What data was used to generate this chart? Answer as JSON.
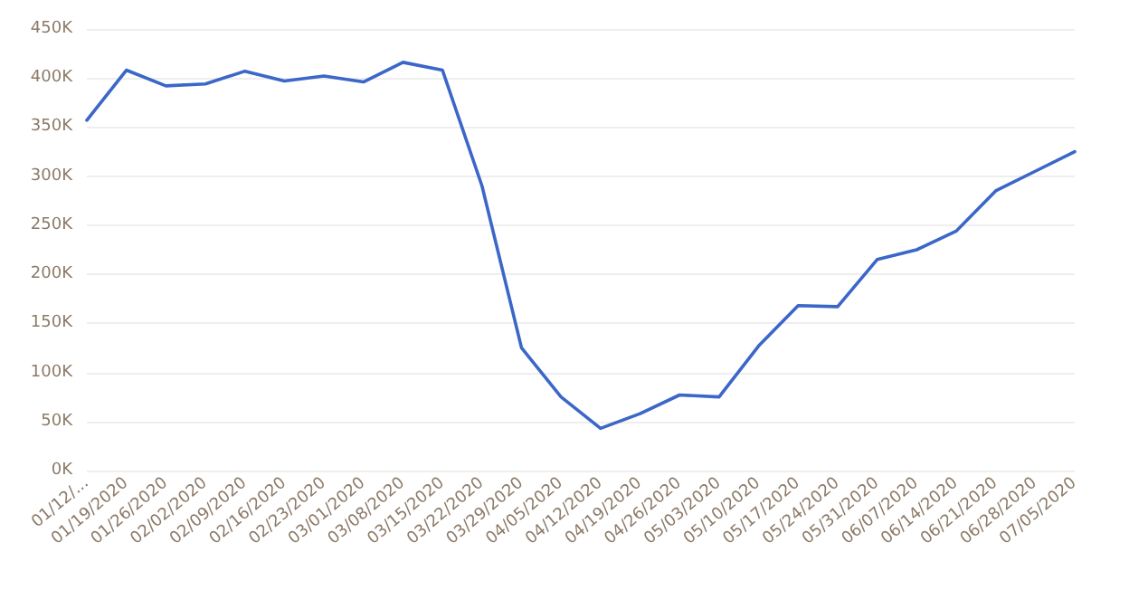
{
  "chart_data": {
    "type": "line",
    "categories": [
      "01/12/...",
      "01/19/2020",
      "01/26/2020",
      "02/02/2020",
      "02/09/2020",
      "02/16/2020",
      "02/23/2020",
      "03/01/2020",
      "03/08/2020",
      "03/15/2020",
      "03/22/2020",
      "03/29/2020",
      "04/05/2020",
      "04/12/2020",
      "04/19/2020",
      "04/26/2020",
      "05/03/2020",
      "05/10/2020",
      "05/17/2020",
      "05/24/2020",
      "05/31/2020",
      "06/07/2020",
      "06/14/2020",
      "06/21/2020",
      "06/28/2020",
      "07/05/2020"
    ],
    "series": [
      {
        "color": "#3b67c8",
        "values": [
          357000,
          408000,
          392000,
          394000,
          407000,
          397000,
          402000,
          396000,
          416000,
          408000,
          290000,
          125000,
          75000,
          43000,
          58000,
          77000,
          75000,
          127000,
          168000,
          167000,
          215000,
          225000,
          244000,
          285000,
          305000,
          325000
        ]
      }
    ],
    "ylim": [
      0,
      450000
    ],
    "yticks": [
      {
        "value": 0,
        "label": "0K"
      },
      {
        "value": 50000,
        "label": "50K"
      },
      {
        "value": 100000,
        "label": "100K"
      },
      {
        "value": 150000,
        "label": "150K"
      },
      {
        "value": 200000,
        "label": "200K"
      },
      {
        "value": 250000,
        "label": "250K"
      },
      {
        "value": 300000,
        "label": "300K"
      },
      {
        "value": 350000,
        "label": "350K"
      },
      {
        "value": 400000,
        "label": "400K"
      },
      {
        "value": 450000,
        "label": "450K"
      }
    ],
    "grid": "y",
    "marker": "none",
    "line_style": "solid"
  }
}
